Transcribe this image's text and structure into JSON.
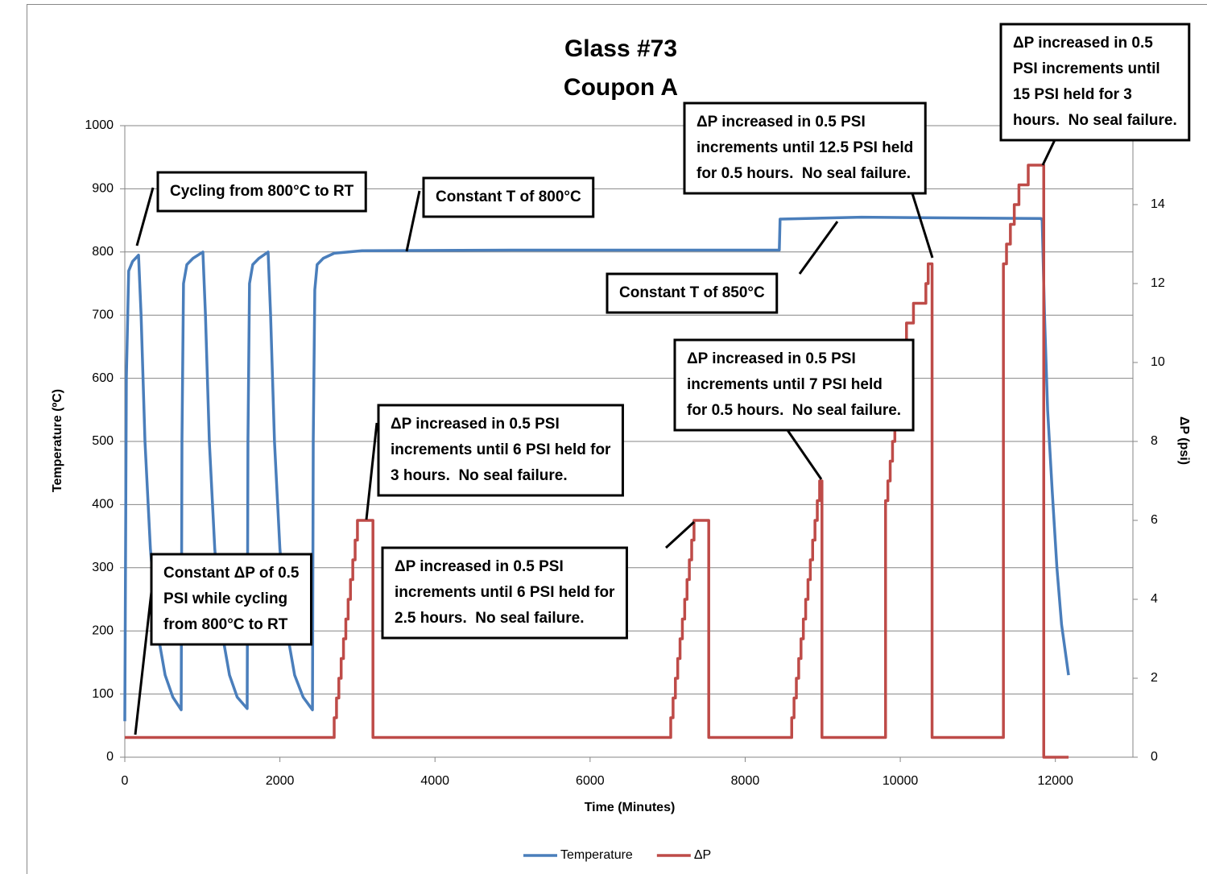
{
  "chart_data": {
    "type": "line",
    "title": "Glass #73",
    "subtitle": "Coupon A",
    "xlabel": "Time (Minutes)",
    "ylabel": "Temperature (ºC)",
    "y2label": "ΔP (psi)",
    "xlim": [
      0,
      13000
    ],
    "xticks": [
      0,
      2000,
      4000,
      6000,
      8000,
      10000,
      12000
    ],
    "ylim": [
      0,
      1000
    ],
    "yticks": [
      0,
      100,
      200,
      300,
      400,
      500,
      600,
      700,
      800,
      900,
      1000
    ],
    "y2lim": [
      0,
      16
    ],
    "y2ticks": [
      0,
      2,
      4,
      6,
      8,
      10,
      12,
      14
    ],
    "grid": true,
    "legend": "bottom",
    "series": [
      {
        "name": "Temperature",
        "color": "#4a7ebb",
        "x": [
          0,
          20,
          50,
          100,
          177,
          210,
          260,
          330,
          420,
          520,
          620,
          727,
          737,
          757,
          800,
          880,
          1007,
          1040,
          1090,
          1160,
          1250,
          1350,
          1450,
          1578,
          1588,
          1608,
          1650,
          1730,
          1848,
          1880,
          1930,
          2000,
          2090,
          2190,
          2300,
          2420,
          2430,
          2450,
          2480,
          2560,
          2700,
          3060,
          5000,
          8440,
          8450,
          9500,
          11816,
          11830,
          11860,
          11900,
          11960,
          12020,
          12080,
          12170
        ],
        "values": [
          57,
          600,
          770,
          785,
          795,
          700,
          500,
          330,
          200,
          130,
          95,
          75,
          500,
          750,
          780,
          790,
          800,
          700,
          500,
          330,
          200,
          130,
          95,
          77,
          500,
          750,
          780,
          790,
          800,
          700,
          500,
          330,
          200,
          130,
          95,
          75,
          500,
          740,
          780,
          790,
          798,
          802,
          803,
          803,
          852,
          855,
          853,
          850,
          700,
          550,
          420,
          300,
          210,
          130
        ]
      },
      {
        "name": "ΔP",
        "color": "#be4b48",
        "axis": "y2",
        "step": "after",
        "x": [
          0,
          2700,
          2730,
          2760,
          2790,
          2820,
          2850,
          2880,
          2910,
          2940,
          2970,
          3000,
          3200,
          7040,
          7070,
          7100,
          7130,
          7160,
          7190,
          7220,
          7250,
          7280,
          7310,
          7340,
          7530,
          8600,
          8630,
          8660,
          8690,
          8720,
          8750,
          8780,
          8810,
          8840,
          8870,
          8900,
          8930,
          8960,
          8990,
          9810,
          9840,
          9870,
          9900,
          9930,
          9960,
          9990,
          10020,
          10050,
          10080,
          10170,
          10330,
          10360,
          10410,
          11330,
          11370,
          11420,
          11470,
          11530,
          11650,
          11850,
          12170
        ],
        "values": [
          0.5,
          1,
          1.5,
          2,
          2.5,
          3,
          3.5,
          4,
          4.5,
          5,
          5.5,
          6,
          0.5,
          1,
          1.5,
          2,
          2.5,
          3,
          3.5,
          4,
          4.5,
          5,
          5.5,
          6,
          0.5,
          1,
          1.5,
          2,
          2.5,
          3,
          3.5,
          4,
          4.5,
          5,
          5.5,
          6,
          6.5,
          7,
          0.5,
          6.5,
          7,
          7.5,
          8,
          8.5,
          9,
          9.5,
          10,
          10.5,
          11,
          11.5,
          12,
          12.5,
          0.5,
          12.5,
          13,
          13.5,
          14,
          14.5,
          15,
          0,
          0
        ]
      }
    ],
    "annotations": [
      {
        "lines": [
          "Cycling from 800°C to RT"
        ]
      },
      {
        "lines": [
          "Constant T of 800°C"
        ]
      },
      {
        "lines": [
          "ΔP increased in 0.5 PSI",
          "increments until 12.5 PSI held",
          "for 0.5 hours.  No seal failure."
        ]
      },
      {
        "lines": [
          "ΔP increased in 0.5",
          "PSI increments until",
          "15 PSI held for 3",
          "hours.  No seal failure."
        ]
      },
      {
        "lines": [
          "Constant T of 850°C"
        ]
      },
      {
        "lines": [
          "ΔP increased in 0.5 PSI",
          "increments until 7 PSI held",
          "for 0.5 hours.  No seal failure."
        ]
      },
      {
        "lines": [
          "ΔP increased in 0.5 PSI",
          "increments until 6 PSI held for",
          "3 hours.  No seal failure."
        ]
      },
      {
        "lines": [
          "ΔP increased in 0.5 PSI",
          "increments until 6 PSI held for",
          "2.5 hours.  No seal failure."
        ]
      },
      {
        "lines": [
          "Constant ΔP of 0.5",
          "PSI while cycling",
          "from 800°C to RT"
        ]
      }
    ]
  }
}
